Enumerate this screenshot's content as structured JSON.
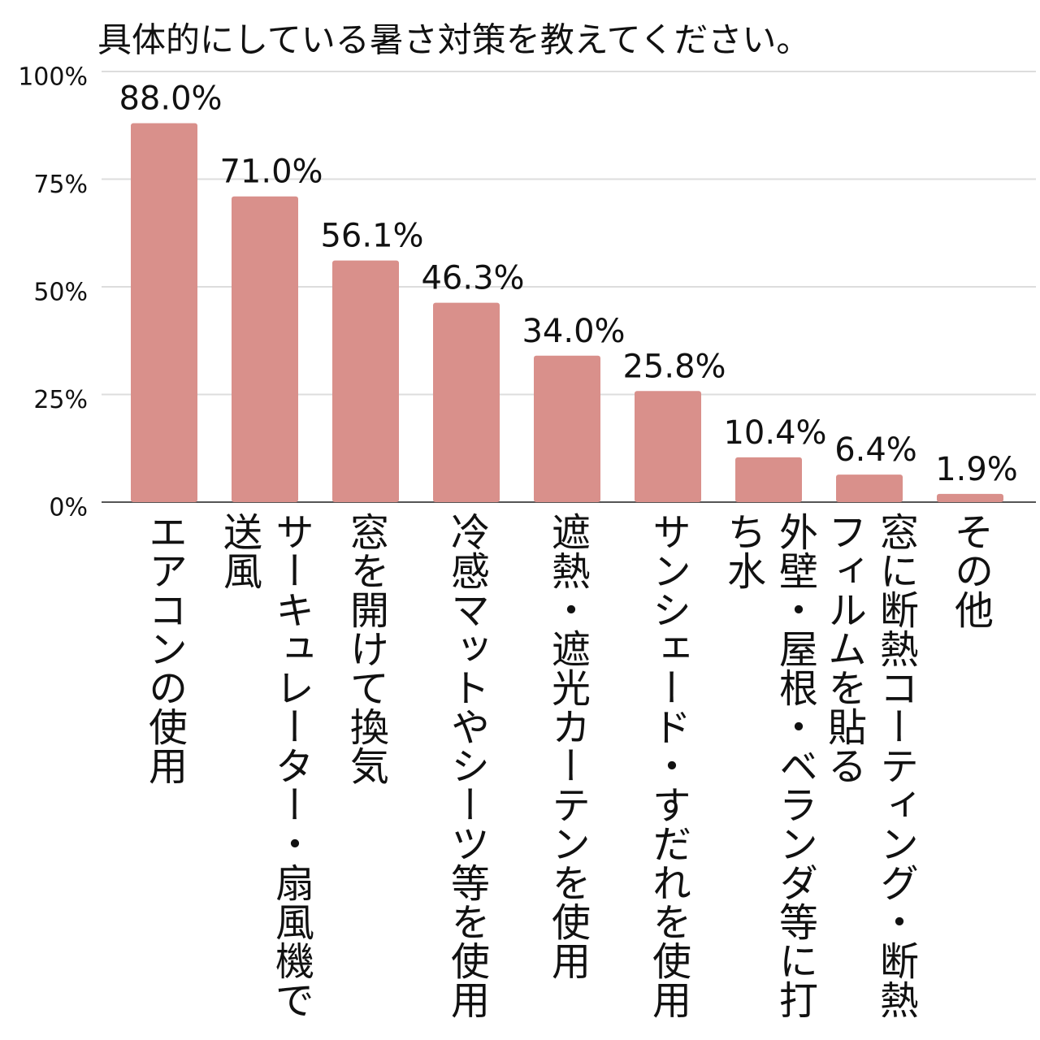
{
  "chart_data": {
    "type": "bar",
    "title": "具体的にしている暑さ対策を教えてください。",
    "categories": [
      "エアコンの使用",
      "サーキュレーター・扇風機で送風",
      "窓を開けて換気",
      "冷感マットやシーツ等を使用",
      "遮熱・遮光カーテンを使用",
      "サンシェード・すだれを使用",
      "外壁・屋根・ベランダ等に打ち水",
      "窓に断熱コーティング・断熱フィルムを貼る",
      "その他"
    ],
    "values": [
      88.0,
      71.0,
      56.1,
      46.3,
      34.0,
      25.8,
      10.4,
      6.4,
      1.9
    ],
    "value_labels": [
      "88.0%",
      "71.0%",
      "56.1%",
      "46.3%",
      "34.0%",
      "25.8%",
      "10.4%",
      "6.4%",
      "1.9%"
    ],
    "color": "#d9908b",
    "ylim": [
      0,
      100
    ],
    "yticks": [
      {
        "value": 0,
        "label": "0%"
      },
      {
        "value": 25,
        "label": "25%"
      },
      {
        "value": 50,
        "label": "50%"
      },
      {
        "value": 75,
        "label": "75%"
      },
      {
        "value": 100,
        "label": "100%"
      }
    ],
    "grid": true
  }
}
